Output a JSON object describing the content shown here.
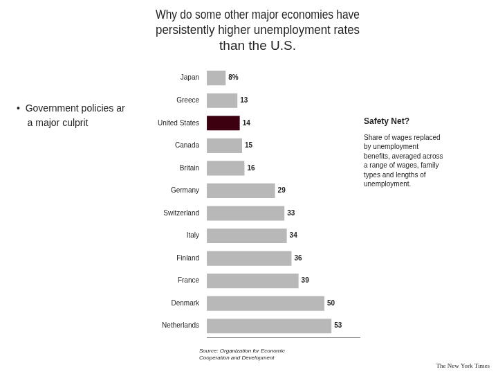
{
  "chart_data": {
    "type": "bar",
    "orientation": "horizontal",
    "title": "Why do some other major economies have\npersistently higher unemployment rates\nthan the U.S.",
    "categories": [
      "Japan",
      "Greece",
      "United States",
      "Canada",
      "Britain",
      "Germany",
      "Switzerland",
      "Italy",
      "Finland",
      "France",
      "Denmark",
      "Netherlands"
    ],
    "values": [
      8,
      13,
      14,
      15,
      16,
      29,
      33,
      34,
      36,
      39,
      50,
      53
    ],
    "value_labels": [
      "8%",
      "13",
      "14",
      "15",
      "16",
      "29",
      "33",
      "34",
      "36",
      "39",
      "50",
      "53"
    ],
    "colors": [
      "#b8b8b8",
      "#b8b8b8",
      "#3d0010",
      "#b8b8b8",
      "#b8b8b8",
      "#b8b8b8",
      "#b8b8b8",
      "#b8b8b8",
      "#b8b8b8",
      "#b8b8b8",
      "#b8b8b8",
      "#b8b8b8"
    ],
    "xlim": [
      0,
      65
    ],
    "xticks": [],
    "grid": false,
    "tick_labels": "y",
    "data_labels": true,
    "annotations": [
      "•  Government policies ar\n    a major culprit",
      "Safety Net?",
      "Share of wages replaced\nby unemployment\nbenefits, averaged across\na range of wages, family\ntypes and lengths of\nunemployment.",
      "Source: Organization for Economic\nCooperation and Development",
      "The New York Times"
    ]
  }
}
